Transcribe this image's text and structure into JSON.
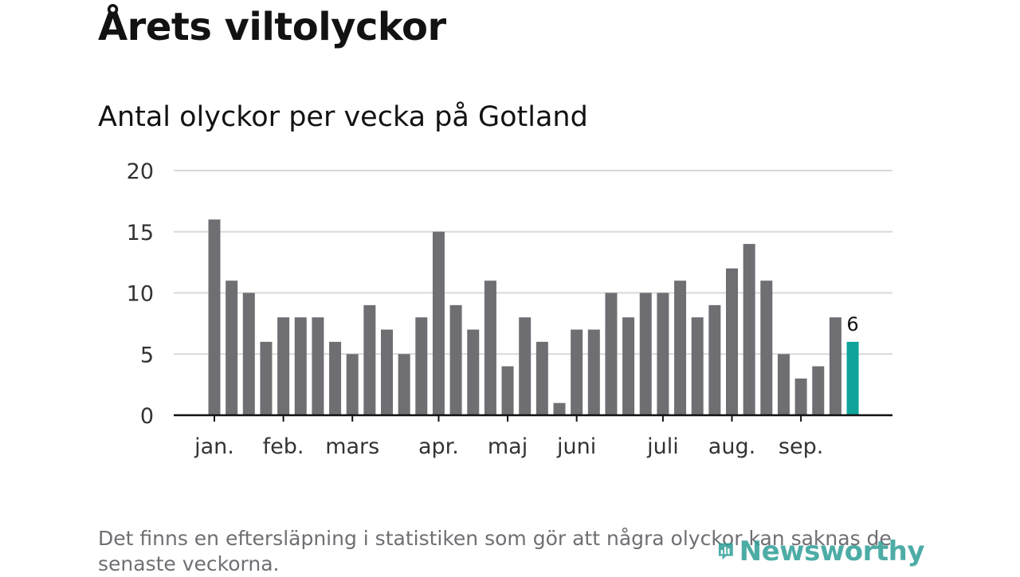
{
  "title": "Årets viltolyckor",
  "subtitle": "Antal olyckor per vecka på Gotland",
  "note": "Det finns en eftersläpning i statistiken som gör att några olyckor kan saknas de senaste veckorna.",
  "logo": {
    "text": "Newsworthy",
    "icon": "newsworthy-logo-icon",
    "color": "#2e9e97"
  },
  "colors": {
    "bar": "#6f6e73",
    "highlight": "#10a39a",
    "grid": "#d9d9d9",
    "axis": "#121212"
  },
  "chart_data": {
    "type": "bar",
    "title": "Antal olyckor per vecka på Gotland",
    "xlabel": "",
    "ylabel": "",
    "ylim": [
      0,
      20
    ],
    "yticks": [
      0,
      5,
      10,
      15,
      20
    ],
    "values": [
      16,
      11,
      10,
      6,
      8,
      8,
      8,
      6,
      5,
      9,
      7,
      5,
      8,
      15,
      9,
      7,
      11,
      4,
      8,
      6,
      1,
      7,
      7,
      10,
      8,
      10,
      10,
      11,
      8,
      9,
      12,
      14,
      11,
      5,
      3,
      4,
      8,
      6
    ],
    "highlight_index": 37,
    "highlight_label": "6",
    "month_labels": [
      {
        "label": "jan.",
        "bar_index": 0
      },
      {
        "label": "feb.",
        "bar_index": 4
      },
      {
        "label": "mars",
        "bar_index": 8
      },
      {
        "label": "apr.",
        "bar_index": 13
      },
      {
        "label": "maj",
        "bar_index": 17
      },
      {
        "label": "juni",
        "bar_index": 21
      },
      {
        "label": "juli",
        "bar_index": 26
      },
      {
        "label": "aug.",
        "bar_index": 30
      },
      {
        "label": "sep.",
        "bar_index": 34
      }
    ],
    "grid": true
  }
}
